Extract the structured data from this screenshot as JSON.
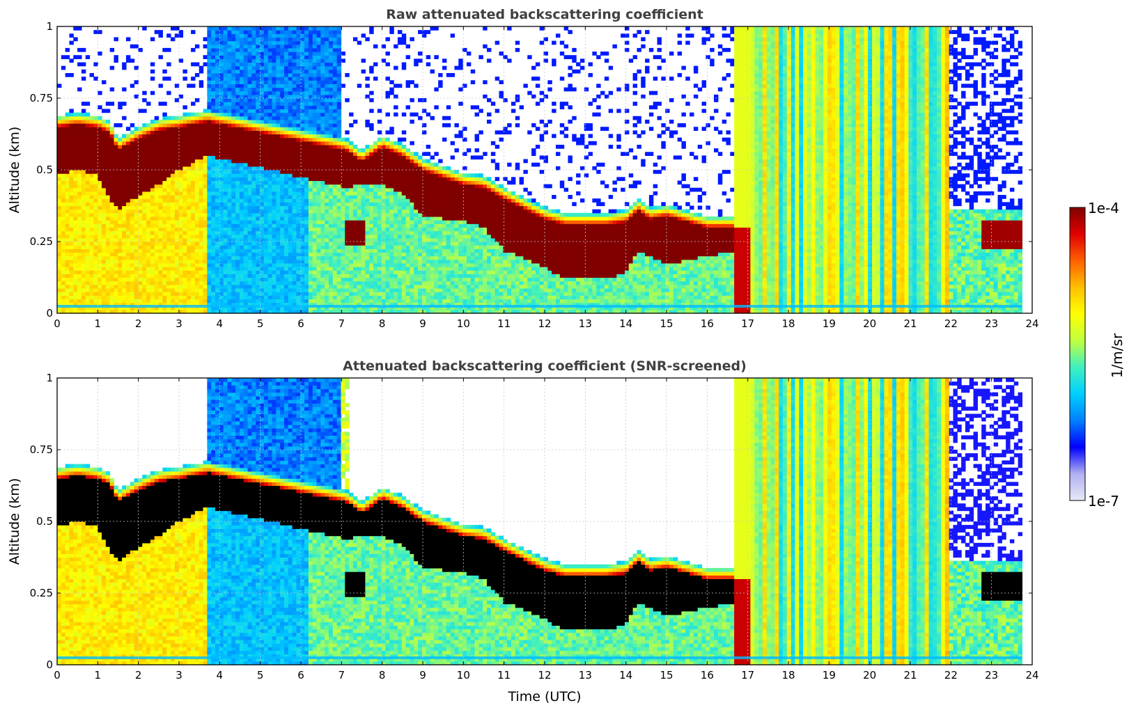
{
  "chart_data": [
    {
      "type": "heatmap",
      "id": "raw",
      "title": "Raw attenuated backscattering coefficient",
      "xlabel": "",
      "ylabel": "Altitude (km)",
      "xlim": [
        0,
        24
      ],
      "ylim": [
        0,
        1
      ],
      "x_ticks": [
        "0",
        "1",
        "2",
        "3",
        "4",
        "5",
        "6",
        "7",
        "8",
        "9",
        "10",
        "11",
        "12",
        "13",
        "14",
        "15",
        "16",
        "17",
        "18",
        "19",
        "20",
        "21",
        "22",
        "23",
        "24"
      ],
      "y_ticks": [
        {
          "value": 0,
          "label": "0"
        },
        {
          "value": 0.25,
          "label": "0.25"
        },
        {
          "value": 0.5,
          "label": "0.5"
        },
        {
          "value": 0.75,
          "label": "0.75"
        },
        {
          "value": 1,
          "label": "1"
        }
      ],
      "grid": true,
      "data_end_time": 23.75,
      "cloud_layer": {
        "time": [
          0,
          0.5,
          1.0,
          1.3,
          1.5,
          2.0,
          2.5,
          3.0,
          3.7,
          7.1,
          7.5,
          8.0,
          8.5,
          9.0,
          10.0,
          10.5,
          11.0,
          12.0,
          12.5,
          13.0,
          13.5,
          14.0,
          14.3,
          14.6,
          15.0,
          16.0,
          16.7
        ],
        "top_km": [
          0.65,
          0.66,
          0.65,
          0.63,
          0.57,
          0.61,
          0.64,
          0.65,
          0.67,
          0.57,
          0.53,
          0.58,
          0.55,
          0.5,
          0.45,
          0.44,
          0.4,
          0.33,
          0.31,
          0.31,
          0.31,
          0.32,
          0.36,
          0.33,
          0.34,
          0.3,
          0.3
        ],
        "base_km": [
          0.48,
          0.5,
          0.48,
          0.4,
          0.36,
          0.41,
          0.45,
          0.5,
          0.55,
          0.44,
          0.45,
          0.45,
          0.42,
          0.34,
          0.32,
          0.3,
          0.22,
          0.16,
          0.12,
          0.12,
          0.12,
          0.14,
          0.22,
          0.2,
          0.17,
          0.2,
          0.22
        ]
      },
      "secondary_cloud": {
        "time": [
          7.1,
          7.6
        ],
        "top_km": 0.33,
        "base_km": 0.24
      },
      "late_cloud": {
        "time": [
          22.8,
          23.75
        ],
        "top_km": 0.33,
        "base_km": 0.22
      }
    },
    {
      "type": "heatmap",
      "id": "screened",
      "title": "Attenuated backscattering coefficient (SNR-screened)",
      "xlabel": "Time (UTC)",
      "ylabel": "Altitude (km)",
      "xlim": [
        0,
        24
      ],
      "ylim": [
        0,
        1
      ],
      "x_ticks": [
        "0",
        "1",
        "2",
        "3",
        "4",
        "5",
        "6",
        "7",
        "8",
        "9",
        "10",
        "11",
        "12",
        "13",
        "14",
        "15",
        "16",
        "17",
        "18",
        "19",
        "20",
        "21",
        "22",
        "23",
        "24"
      ],
      "y_ticks": [
        {
          "value": 0,
          "label": "0"
        },
        {
          "value": 0.25,
          "label": "0.25"
        },
        {
          "value": 0.5,
          "label": "0.5"
        },
        {
          "value": 0.75,
          "label": "0.75"
        },
        {
          "value": 1,
          "label": "1"
        }
      ],
      "grid": true,
      "data_end_time": 23.75,
      "saturated_color": "#000000"
    }
  ],
  "colorbar": {
    "label": "1/m/sr",
    "max_label": "1e-4",
    "min_label": "1e-7",
    "scale": "log",
    "range": [
      1e-07,
      0.0001
    ],
    "colormap": [
      "#e8e8f8",
      "#b0b0f0",
      "#0000ff",
      "#0080ff",
      "#00d0ff",
      "#40f0c0",
      "#c0ff40",
      "#ffff00",
      "#ffc000",
      "#ff6000",
      "#e00000",
      "#800000"
    ]
  },
  "colors": {
    "axis": "#000000",
    "grid": "#c8c8c8",
    "title": "#404040",
    "saturated": "#000000"
  }
}
